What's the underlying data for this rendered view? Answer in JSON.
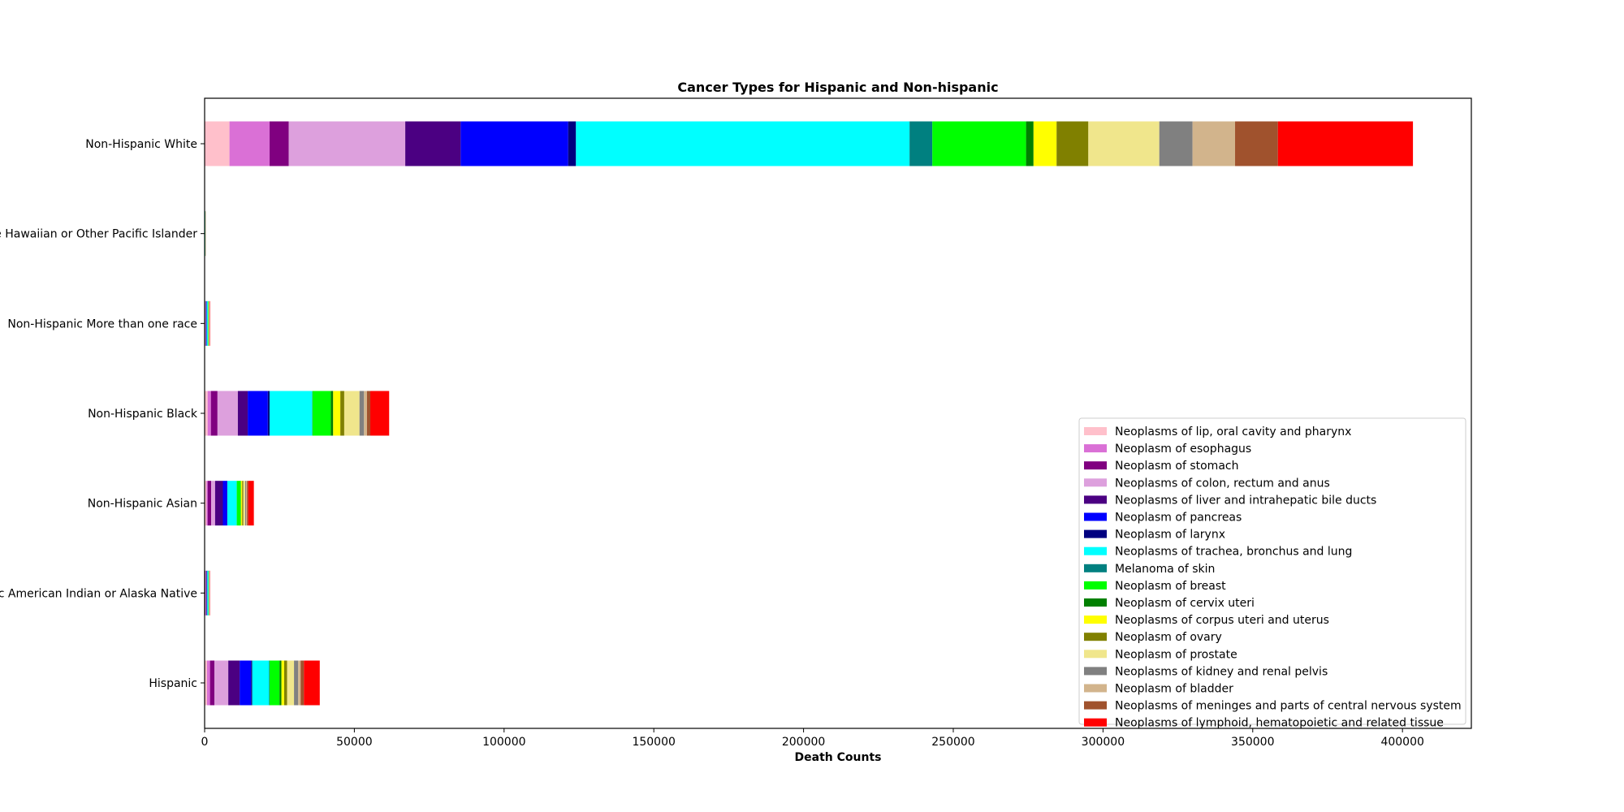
{
  "chart_data": {
    "type": "bar",
    "orientation": "horizontal",
    "stacked": true,
    "title": "Cancer Types for Hispanic and Non-hispanic",
    "xlabel": "Death Counts",
    "ylabel": "",
    "xlim": [
      0,
      423000
    ],
    "xticks": [
      0,
      50000,
      100000,
      150000,
      200000,
      250000,
      300000,
      350000,
      400000
    ],
    "grid": false,
    "legend_position": "lower right",
    "categories": [
      "Hispanic",
      "Non-Hispanic American Indian or Alaska Native",
      "Non-Hispanic Asian",
      "Non-Hispanic Black",
      "Non-Hispanic More than one race",
      "Non-Hispanic Native Hawaiian or Other Pacific Islander",
      "Non-Hispanic White"
    ],
    "series": [
      {
        "name": "Neoplasms of lip, oral cavity and pharynx",
        "color": "#ffc0cb",
        "values": [
          800,
          80,
          600,
          1000,
          60,
          15,
          8300
        ]
      },
      {
        "name": "Neoplasm of esophagus",
        "color": "#da70d6",
        "values": [
          1000,
          70,
          400,
          1100,
          55,
          10,
          13400
        ]
      },
      {
        "name": "Neoplasm of stomach",
        "color": "#800080",
        "values": [
          1500,
          120,
          1200,
          2200,
          90,
          20,
          6400
        ]
      },
      {
        "name": "Neoplasms of colon, rectum and anus",
        "color": "#dda0dd",
        "values": [
          4600,
          250,
          1300,
          6800,
          200,
          45,
          38900
        ]
      },
      {
        "name": "Neoplasms of liver and intrahepatic bile ducts",
        "color": "#4b0082",
        "values": [
          3800,
          200,
          2600,
          3300,
          120,
          30,
          18500
        ]
      },
      {
        "name": "Neoplasm of pancreas",
        "color": "#0000ff",
        "values": [
          3800,
          150,
          1400,
          6700,
          170,
          30,
          35900
        ]
      },
      {
        "name": "Neoplasm of larynx",
        "color": "#000080",
        "values": [
          400,
          20,
          100,
          600,
          20,
          5,
          2600
        ]
      },
      {
        "name": "Neoplasms of trachea, bronchus and lung",
        "color": "#00ffff",
        "values": [
          5600,
          350,
          3100,
          14200,
          350,
          70,
          111400
        ]
      },
      {
        "name": "Melanoma of skin",
        "color": "#008080",
        "values": [
          200,
          20,
          40,
          120,
          40,
          3,
          7600
        ]
      },
      {
        "name": "Neoplasm of breast",
        "color": "#00ff00",
        "values": [
          3300,
          100,
          1300,
          6100,
          170,
          40,
          31300
        ]
      },
      {
        "name": "Neoplasm of cervix uteri",
        "color": "#008000",
        "values": [
          650,
          30,
          100,
          800,
          20,
          10,
          2500
        ]
      },
      {
        "name": "Neoplasms of corpus uteri and uterus",
        "color": "#ffff00",
        "values": [
          900,
          30,
          400,
          2400,
          50,
          15,
          7700
        ]
      },
      {
        "name": "Neoplasm of ovary",
        "color": "#808000",
        "values": [
          1000,
          30,
          400,
          1300,
          50,
          10,
          10600
        ]
      },
      {
        "name": "Neoplasm of prostate",
        "color": "#f0e68c",
        "values": [
          2300,
          50,
          600,
          5100,
          80,
          20,
          23700
        ]
      },
      {
        "name": "Neoplasms of kidney and renal pelvis",
        "color": "#808080",
        "values": [
          1400,
          70,
          300,
          1500,
          50,
          10,
          11100
        ]
      },
      {
        "name": "Neoplasm of bladder",
        "color": "#d2b48c",
        "values": [
          800,
          30,
          300,
          1000,
          50,
          5,
          14200
        ]
      },
      {
        "name": "Neoplasms of meninges and parts of central nervous system",
        "color": "#a0522d",
        "values": [
          1100,
          50,
          400,
          1100,
          60,
          10,
          14300
        ]
      },
      {
        "name": "Neoplasms of lymphoid, hematopoietic and related tissue",
        "color": "#ff0000",
        "values": [
          5300,
          120,
          1900,
          6300,
          150,
          40,
          45100
        ]
      }
    ]
  }
}
